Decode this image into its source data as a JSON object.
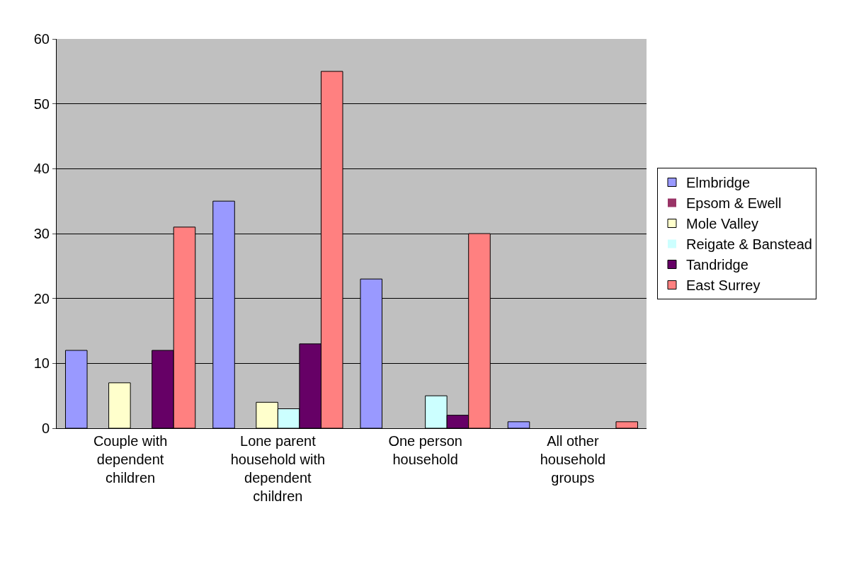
{
  "chart_data": {
    "type": "bar",
    "categories": [
      "Couple with dependent children",
      "Lone parent household with dependent children",
      "One person household",
      "All other household groups"
    ],
    "series": [
      {
        "name": "Elmbridge",
        "color": "#9999ff",
        "values": [
          12,
          35,
          23,
          1
        ]
      },
      {
        "name": "Epsom & Ewell",
        "color": "#993366",
        "values": [
          0,
          0,
          0,
          0
        ]
      },
      {
        "name": "Mole Valley",
        "color": "#ffffcc",
        "values": [
          7,
          4,
          0,
          0
        ]
      },
      {
        "name": "Reigate & Banstead",
        "color": "#ccffff",
        "values": [
          0,
          3,
          5,
          0
        ]
      },
      {
        "name": "Tandridge",
        "color": "#660066",
        "values": [
          12,
          13,
          2,
          0
        ]
      },
      {
        "name": "East Surrey",
        "color": "#ff8080",
        "values": [
          31,
          55,
          30,
          1
        ]
      }
    ],
    "ylim": [
      0,
      60
    ],
    "yticks": [
      0,
      10,
      20,
      30,
      40,
      50,
      60
    ],
    "grid": "y",
    "legend": "right"
  }
}
